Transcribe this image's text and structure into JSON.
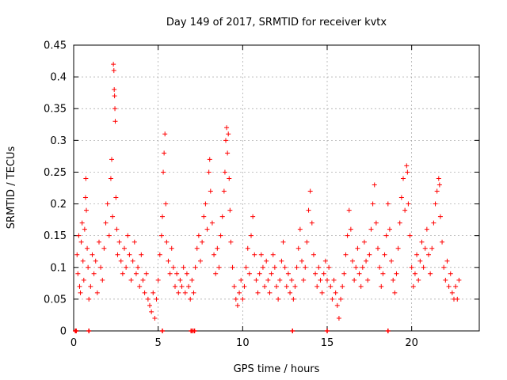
{
  "chart_data": {
    "type": "scatter",
    "title": "Day 149 of 2017, SRMTID for receiver kvtx",
    "xlabel": "GPS time / hours",
    "ylabel": "SRMTID / TECUs",
    "xlim": [
      0,
      24
    ],
    "ylim": [
      0,
      0.45
    ],
    "xticks": [
      0,
      5,
      10,
      15,
      20
    ],
    "xtick_labels": [
      "0",
      "5",
      "10",
      "15",
      "20"
    ],
    "yticks": [
      0,
      0.05,
      0.1,
      0.15,
      0.2,
      0.25,
      0.3,
      0.35,
      0.4,
      0.45
    ],
    "ytick_labels": [
      "0",
      "0.05",
      "0.1",
      "0.15",
      "0.2",
      "0.25",
      "0.3",
      "0.35",
      "0.4",
      "0.45"
    ],
    "grid": true,
    "marker": "+",
    "color": "#ff0000",
    "zero_markers_x": [
      0.1,
      0.15,
      0.9,
      5.25,
      6.95,
      7.05,
      7.15,
      12.95,
      15.0,
      18.6
    ],
    "series": [
      {
        "name": "SRMTID",
        "points": [
          [
            0.2,
            0.12
          ],
          [
            0.25,
            0.09
          ],
          [
            0.3,
            0.15
          ],
          [
            0.35,
            0.07
          ],
          [
            0.4,
            0.06
          ],
          [
            0.45,
            0.14
          ],
          [
            0.5,
            0.17
          ],
          [
            0.55,
            0.11
          ],
          [
            0.6,
            0.08
          ],
          [
            0.65,
            0.16
          ],
          [
            0.7,
            0.21
          ],
          [
            0.72,
            0.24
          ],
          [
            0.75,
            0.19
          ],
          [
            0.8,
            0.13
          ],
          [
            0.85,
            0.1
          ],
          [
            0.9,
            0.05
          ],
          [
            1.0,
            0.07
          ],
          [
            1.1,
            0.12
          ],
          [
            1.2,
            0.09
          ],
          [
            1.3,
            0.11
          ],
          [
            1.4,
            0.06
          ],
          [
            1.5,
            0.14
          ],
          [
            1.6,
            0.1
          ],
          [
            1.7,
            0.08
          ],
          [
            1.8,
            0.13
          ],
          [
            1.9,
            0.17
          ],
          [
            2.0,
            0.2
          ],
          [
            2.1,
            0.15
          ],
          [
            2.2,
            0.24
          ],
          [
            2.25,
            0.27
          ],
          [
            2.3,
            0.18
          ],
          [
            2.35,
            0.42
          ],
          [
            2.38,
            0.41
          ],
          [
            2.4,
            0.38
          ],
          [
            2.42,
            0.37
          ],
          [
            2.44,
            0.35
          ],
          [
            2.46,
            0.33
          ],
          [
            2.5,
            0.21
          ],
          [
            2.55,
            0.16
          ],
          [
            2.6,
            0.12
          ],
          [
            2.7,
            0.14
          ],
          [
            2.8,
            0.11
          ],
          [
            2.9,
            0.09
          ],
          [
            3.0,
            0.13
          ],
          [
            3.1,
            0.1
          ],
          [
            3.2,
            0.15
          ],
          [
            3.3,
            0.12
          ],
          [
            3.4,
            0.08
          ],
          [
            3.5,
            0.11
          ],
          [
            3.6,
            0.14
          ],
          [
            3.7,
            0.09
          ],
          [
            3.8,
            0.1
          ],
          [
            3.9,
            0.07
          ],
          [
            4.0,
            0.12
          ],
          [
            4.1,
            0.08
          ],
          [
            4.2,
            0.06
          ],
          [
            4.3,
            0.09
          ],
          [
            4.4,
            0.05
          ],
          [
            4.5,
            0.04
          ],
          [
            4.6,
            0.03
          ],
          [
            4.7,
            0.06
          ],
          [
            4.8,
            0.02
          ],
          [
            4.9,
            0.05
          ],
          [
            5.0,
            0.08
          ],
          [
            5.1,
            0.12
          ],
          [
            5.2,
            0.15
          ],
          [
            5.25,
            0.18
          ],
          [
            5.3,
            0.25
          ],
          [
            5.35,
            0.28
          ],
          [
            5.4,
            0.31
          ],
          [
            5.45,
            0.2
          ],
          [
            5.5,
            0.14
          ],
          [
            5.6,
            0.11
          ],
          [
            5.7,
            0.09
          ],
          [
            5.8,
            0.13
          ],
          [
            5.9,
            0.1
          ],
          [
            6.0,
            0.07
          ],
          [
            6.1,
            0.09
          ],
          [
            6.2,
            0.06
          ],
          [
            6.3,
            0.08
          ],
          [
            6.4,
            0.07
          ],
          [
            6.5,
            0.1
          ],
          [
            6.6,
            0.06
          ],
          [
            6.7,
            0.09
          ],
          [
            6.8,
            0.07
          ],
          [
            6.9,
            0.05
          ],
          [
            7.0,
            0.08
          ],
          [
            7.1,
            0.06
          ],
          [
            7.2,
            0.1
          ],
          [
            7.3,
            0.13
          ],
          [
            7.4,
            0.15
          ],
          [
            7.5,
            0.11
          ],
          [
            7.6,
            0.14
          ],
          [
            7.7,
            0.18
          ],
          [
            7.8,
            0.2
          ],
          [
            7.9,
            0.16
          ],
          [
            8.0,
            0.25
          ],
          [
            8.05,
            0.27
          ],
          [
            8.1,
            0.22
          ],
          [
            8.2,
            0.17
          ],
          [
            8.3,
            0.12
          ],
          [
            8.4,
            0.09
          ],
          [
            8.5,
            0.13
          ],
          [
            8.6,
            0.1
          ],
          [
            8.7,
            0.15
          ],
          [
            8.8,
            0.18
          ],
          [
            8.9,
            0.22
          ],
          [
            8.95,
            0.25
          ],
          [
            9.0,
            0.3
          ],
          [
            9.05,
            0.32
          ],
          [
            9.1,
            0.28
          ],
          [
            9.15,
            0.31
          ],
          [
            9.2,
            0.24
          ],
          [
            9.25,
            0.19
          ],
          [
            9.3,
            0.14
          ],
          [
            9.4,
            0.1
          ],
          [
            9.5,
            0.07
          ],
          [
            9.6,
            0.05
          ],
          [
            9.7,
            0.04
          ],
          [
            9.8,
            0.06
          ],
          [
            9.9,
            0.08
          ],
          [
            10.0,
            0.05
          ],
          [
            10.1,
            0.07
          ],
          [
            10.2,
            0.1
          ],
          [
            10.3,
            0.13
          ],
          [
            10.4,
            0.09
          ],
          [
            10.5,
            0.15
          ],
          [
            10.6,
            0.18
          ],
          [
            10.7,
            0.12
          ],
          [
            10.8,
            0.08
          ],
          [
            10.9,
            0.06
          ],
          [
            11.0,
            0.09
          ],
          [
            11.1,
            0.12
          ],
          [
            11.2,
            0.1
          ],
          [
            11.3,
            0.07
          ],
          [
            11.4,
            0.11
          ],
          [
            11.5,
            0.08
          ],
          [
            11.6,
            0.06
          ],
          [
            11.7,
            0.09
          ],
          [
            11.8,
            0.12
          ],
          [
            11.9,
            0.1
          ],
          [
            12.0,
            0.07
          ],
          [
            12.1,
            0.05
          ],
          [
            12.2,
            0.08
          ],
          [
            12.3,
            0.11
          ],
          [
            12.4,
            0.14
          ],
          [
            12.5,
            0.1
          ],
          [
            12.6,
            0.07
          ],
          [
            12.7,
            0.09
          ],
          [
            12.8,
            0.06
          ],
          [
            12.9,
            0.08
          ],
          [
            13.0,
            0.05
          ],
          [
            13.1,
            0.07
          ],
          [
            13.2,
            0.1
          ],
          [
            13.3,
            0.13
          ],
          [
            13.4,
            0.16
          ],
          [
            13.5,
            0.11
          ],
          [
            13.6,
            0.08
          ],
          [
            13.7,
            0.1
          ],
          [
            13.8,
            0.14
          ],
          [
            13.9,
            0.19
          ],
          [
            14.0,
            0.22
          ],
          [
            14.1,
            0.17
          ],
          [
            14.2,
            0.12
          ],
          [
            14.3,
            0.09
          ],
          [
            14.4,
            0.07
          ],
          [
            14.5,
            0.1
          ],
          [
            14.6,
            0.08
          ],
          [
            14.7,
            0.06
          ],
          [
            14.8,
            0.09
          ],
          [
            14.9,
            0.11
          ],
          [
            15.0,
            0.08
          ],
          [
            15.1,
            0.1
          ],
          [
            15.2,
            0.07
          ],
          [
            15.3,
            0.05
          ],
          [
            15.4,
            0.08
          ],
          [
            15.5,
            0.06
          ],
          [
            15.6,
            0.04
          ],
          [
            15.7,
            0.02
          ],
          [
            15.8,
            0.05
          ],
          [
            15.9,
            0.07
          ],
          [
            16.0,
            0.09
          ],
          [
            16.1,
            0.12
          ],
          [
            16.2,
            0.15
          ],
          [
            16.3,
            0.19
          ],
          [
            16.4,
            0.16
          ],
          [
            16.5,
            0.11
          ],
          [
            16.6,
            0.08
          ],
          [
            16.7,
            0.1
          ],
          [
            16.8,
            0.13
          ],
          [
            16.9,
            0.09
          ],
          [
            17.0,
            0.07
          ],
          [
            17.1,
            0.1
          ],
          [
            17.2,
            0.14
          ],
          [
            17.3,
            0.11
          ],
          [
            17.4,
            0.08
          ],
          [
            17.5,
            0.12
          ],
          [
            17.6,
            0.16
          ],
          [
            17.7,
            0.2
          ],
          [
            17.8,
            0.23
          ],
          [
            17.9,
            0.17
          ],
          [
            18.0,
            0.13
          ],
          [
            18.1,
            0.1
          ],
          [
            18.2,
            0.07
          ],
          [
            18.3,
            0.09
          ],
          [
            18.4,
            0.12
          ],
          [
            18.5,
            0.15
          ],
          [
            18.6,
            0.2
          ],
          [
            18.7,
            0.16
          ],
          [
            18.8,
            0.11
          ],
          [
            18.9,
            0.08
          ],
          [
            19.0,
            0.06
          ],
          [
            19.1,
            0.09
          ],
          [
            19.2,
            0.13
          ],
          [
            19.3,
            0.17
          ],
          [
            19.4,
            0.21
          ],
          [
            19.5,
            0.24
          ],
          [
            19.6,
            0.19
          ],
          [
            19.7,
            0.26
          ],
          [
            19.75,
            0.25
          ],
          [
            19.8,
            0.2
          ],
          [
            19.9,
            0.15
          ],
          [
            20.0,
            0.1
          ],
          [
            20.1,
            0.07
          ],
          [
            20.2,
            0.09
          ],
          [
            20.3,
            0.12
          ],
          [
            20.4,
            0.08
          ],
          [
            20.5,
            0.11
          ],
          [
            20.6,
            0.14
          ],
          [
            20.7,
            0.1
          ],
          [
            20.8,
            0.13
          ],
          [
            20.9,
            0.16
          ],
          [
            21.0,
            0.12
          ],
          [
            21.1,
            0.09
          ],
          [
            21.2,
            0.13
          ],
          [
            21.3,
            0.17
          ],
          [
            21.4,
            0.2
          ],
          [
            21.5,
            0.22
          ],
          [
            21.6,
            0.24
          ],
          [
            21.65,
            0.23
          ],
          [
            21.7,
            0.18
          ],
          [
            21.8,
            0.14
          ],
          [
            21.9,
            0.1
          ],
          [
            22.0,
            0.08
          ],
          [
            22.1,
            0.11
          ],
          [
            22.2,
            0.07
          ],
          [
            22.3,
            0.09
          ],
          [
            22.4,
            0.06
          ],
          [
            22.5,
            0.05
          ],
          [
            22.6,
            0.07
          ],
          [
            22.7,
            0.05
          ],
          [
            22.8,
            0.08
          ]
        ]
      }
    ]
  }
}
